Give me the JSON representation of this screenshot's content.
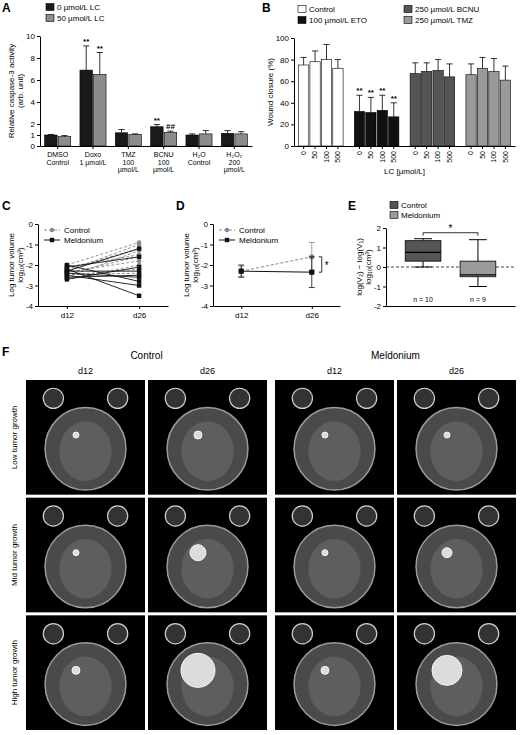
{
  "chart_data": [
    {
      "panel": "A",
      "type": "bar",
      "y_label": "Relative caspase-3 activity\n(arb. unit)",
      "categories": [
        "DMSO\nControl",
        "Doxo\n1 µmol/L",
        "TMZ\n100 µmol/L",
        "BCNU\n100 µmol/L",
        "H₂O\nControl",
        "H₂O₂\n200 µmol/L"
      ],
      "series": [
        {
          "name": "0 µmol/L LC",
          "color": "#1a1a1a",
          "values": [
            1.0,
            6.9,
            1.2,
            1.75,
            1.0,
            1.15
          ],
          "errors": [
            0.05,
            2.2,
            0.3,
            0.2,
            0.1,
            0.25
          ]
        },
        {
          "name": "50 µmol/L LC",
          "color": "#8c8c8c",
          "values": [
            0.85,
            6.5,
            1.05,
            1.25,
            1.1,
            1.1
          ],
          "errors": [
            0.1,
            2.0,
            0.05,
            0.1,
            0.3,
            0.2
          ]
        }
      ],
      "ylim": [
        0,
        10
      ],
      "yticks": [
        0,
        1,
        2,
        4,
        6,
        8,
        10
      ],
      "legend": "top",
      "annotations": [
        {
          "text": "**",
          "category": 1,
          "series": 0
        },
        {
          "text": "**",
          "category": 1,
          "series": 1
        },
        {
          "text": "**",
          "category": 3,
          "series": 0
        },
        {
          "text": "##",
          "category": 3,
          "series": 1
        }
      ]
    },
    {
      "panel": "B",
      "type": "bar",
      "y_label": "Wound closure (%)",
      "x_label": "LC [µmol/L]",
      "categories": [
        "0",
        "50",
        "100",
        "500"
      ],
      "series": [
        {
          "name": "Control",
          "color": "#ffffff",
          "values": [
            75,
            78,
            80,
            72
          ],
          "errors": [
            7,
            10,
            14,
            8
          ]
        },
        {
          "name": "100 µmol/L ETO",
          "color": "#111111",
          "values": [
            32,
            31,
            33,
            27
          ],
          "errors": [
            15,
            14,
            14,
            13
          ]
        },
        {
          "name": "250 µmol/L BCNU",
          "color": "#555555",
          "values": [
            67,
            69,
            70,
            64
          ],
          "errors": [
            10,
            8,
            10,
            12
          ]
        },
        {
          "name": "250 µmol/L TMZ",
          "color": "#9a9a9a",
          "values": [
            66,
            72,
            69,
            61
          ],
          "errors": [
            10,
            10,
            12,
            13
          ]
        }
      ],
      "ylim": [
        0,
        100
      ],
      "yticks": [
        0,
        20,
        40,
        60,
        80,
        100
      ],
      "legend": "top",
      "annotations": [
        {
          "text": "**",
          "category": 0,
          "series": 1
        },
        {
          "text": "**",
          "category": 1,
          "series": 1
        },
        {
          "text": "**",
          "category": 2,
          "series": 1
        },
        {
          "text": "**",
          "category": 3,
          "series": 1
        }
      ]
    },
    {
      "panel": "C",
      "type": "line",
      "y_label": "Log tumor volume\nlog₁₀(cm³)",
      "categories": [
        "d12",
        "d26"
      ],
      "ylim": [
        -4,
        0
      ],
      "yticks": [
        -4,
        -3,
        -2,
        -1,
        0
      ],
      "legend": "upper left",
      "series": [
        {
          "name": "Control",
          "color": "#888888",
          "marker": "circle",
          "line_style": "dashed",
          "values": [
            [
              -2.3,
              -1.0
            ],
            [
              -2.0,
              -0.9
            ],
            [
              -2.6,
              -1.3
            ],
            [
              -2.4,
              -1.6
            ],
            [
              -2.2,
              -1.2
            ],
            [
              -2.7,
              -2.0
            ],
            [
              -2.5,
              -2.2
            ],
            [
              -2.1,
              -1.5
            ],
            [
              -2.35,
              -1.8
            ],
            [
              -2.45,
              -2.4
            ]
          ]
        },
        {
          "name": "Meldonium",
          "color": "#111111",
          "marker": "square",
          "line_style": "solid",
          "values": [
            [
              -2.2,
              -3.5
            ],
            [
              -2.5,
              -3.0
            ],
            [
              -2.0,
              -2.8
            ],
            [
              -2.6,
              -2.5
            ],
            [
              -2.3,
              -2.3
            ],
            [
              -2.4,
              -2.6
            ],
            [
              -2.1,
              -1.6
            ],
            [
              -2.7,
              -2.1
            ],
            [
              -2.3,
              -1.2
            ]
          ]
        }
      ]
    },
    {
      "panel": "D",
      "type": "line",
      "y_label": "Log tumor volume\nlog₁₀(cm³)",
      "categories": [
        "d12",
        "d26"
      ],
      "ylim": [
        -4,
        0
      ],
      "yticks": [
        -4,
        -3,
        -2,
        -1,
        0
      ],
      "legend": "upper left",
      "series": [
        {
          "name": "Control",
          "color": "#888888",
          "marker": "circle",
          "line_style": "dashed",
          "values": [
            -2.3,
            -1.6
          ],
          "errors": [
            0.25,
            0.7
          ]
        },
        {
          "name": "Meldonium",
          "color": "#111111",
          "marker": "square",
          "line_style": "solid",
          "values": [
            -2.3,
            -2.35
          ],
          "errors": [
            0.3,
            0.75
          ]
        }
      ],
      "annotations": [
        {
          "text": "*",
          "category": 1,
          "between": [
            0,
            1
          ]
        }
      ]
    },
    {
      "panel": "E",
      "type": "box",
      "y_label": "log(V₂) − log(V₁)\nlog₁₀(cm³)",
      "ylim": [
        -2,
        2
      ],
      "yticks": [
        -2,
        -1,
        0,
        1,
        2
      ],
      "legend": "top",
      "tick_labels": "y",
      "hline": 0,
      "series": [
        {
          "name": "Control",
          "color": "#555555",
          "min": 0.0,
          "q1": 0.3,
          "median": 0.75,
          "q3": 1.35,
          "max": 1.45,
          "n_label": "n = 10"
        },
        {
          "name": "Meldonium",
          "color": "#9a9a9a",
          "min": -1.0,
          "q1": -0.5,
          "median": -0.4,
          "q3": 0.3,
          "max": 1.4,
          "n_label": "n = 9"
        }
      ],
      "annotations": [
        {
          "text": "*",
          "between": [
            0,
            1
          ]
        }
      ]
    }
  ],
  "image_grid": {
    "panel": "F",
    "groups": [
      "Control",
      "Meldonium"
    ],
    "columns": [
      "d12",
      "d26"
    ],
    "rows": [
      "Low tumor growth",
      "Mid tumor growth",
      "High tumor growth"
    ]
  }
}
